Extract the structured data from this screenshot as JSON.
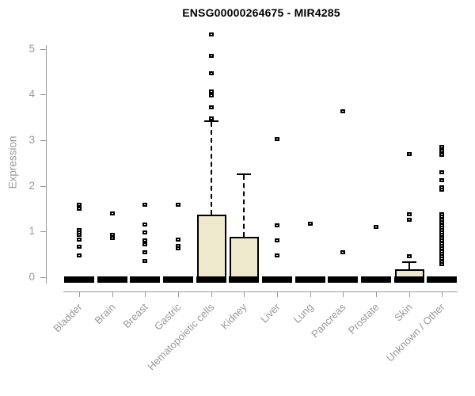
{
  "chart_data": {
    "type": "boxplot",
    "title": "ENSG00000264675 - MIR4285",
    "ylabel": "Expression",
    "xlabel": "",
    "ylim": [
      0,
      5.4
    ],
    "yticks": [
      0,
      1,
      2,
      3,
      4,
      5
    ],
    "grid": false,
    "legend": "none",
    "colors": {
      "box_fill": "#EEE8CD",
      "box_border": "#000000",
      "median": "#000000",
      "outlier_border": "#000000",
      "outlier_fill": "#FFFFFF",
      "axis": "#999999",
      "title": "#000000"
    },
    "categories": [
      {
        "label": "Bladder",
        "median": 0,
        "q1": 0,
        "q3": 0,
        "whisker_high": 0,
        "outliers": [
          1.59,
          1.51,
          1.04,
          0.99,
          0.94,
          0.84,
          0.68,
          0.49
        ]
      },
      {
        "label": "Brain",
        "median": 0,
        "q1": 0,
        "q3": 0,
        "whisker_high": 0,
        "outliers": [
          1.4,
          0.93,
          0.87
        ]
      },
      {
        "label": "Breast",
        "median": 0,
        "q1": 0,
        "q3": 0,
        "whisker_high": 0,
        "outliers": [
          1.59,
          1.16,
          0.98,
          0.82,
          0.76,
          0.72,
          0.55,
          0.37
        ]
      },
      {
        "label": "Gastric",
        "median": 0,
        "q1": 0,
        "q3": 0,
        "whisker_high": 0,
        "outliers": [
          1.59,
          0.84,
          0.7,
          0.64
        ]
      },
      {
        "label": "Hematopoietic cells",
        "median": 0,
        "q1": 0,
        "q3": 1.37,
        "whisker_high": 3.43,
        "outliers": [
          5.33,
          4.85,
          4.47,
          4.08,
          3.98,
          3.73,
          3.49
        ]
      },
      {
        "label": "Kidney",
        "median": 0,
        "q1": 0,
        "q3": 0.88,
        "whisker_high": 2.27,
        "outliers": []
      },
      {
        "label": "Liver",
        "median": 0,
        "q1": 0,
        "q3": 0,
        "whisker_high": 0,
        "outliers": [
          3.03,
          1.14,
          0.82,
          0.49
        ]
      },
      {
        "label": "Lung",
        "median": 0,
        "q1": 0,
        "q3": 0,
        "whisker_high": 0,
        "outliers": [
          1.18
        ]
      },
      {
        "label": "Pancreas",
        "median": 0,
        "q1": 0,
        "q3": 0,
        "whisker_high": 0,
        "outliers": [
          3.65,
          0.55
        ]
      },
      {
        "label": "Prostate",
        "median": 0,
        "q1": 0,
        "q3": 0,
        "whisker_high": 0,
        "outliers": [
          1.11
        ]
      },
      {
        "label": "Skin",
        "median": 0,
        "q1": 0,
        "q3": 0.18,
        "whisker_high": 0.35,
        "outliers": [
          2.7,
          1.39,
          1.27,
          0.46
        ]
      },
      {
        "label": "Unknown / Other",
        "median": 0,
        "q1": 0,
        "q3": 0,
        "whisker_high": 0,
        "outliers": [
          2.86,
          2.77,
          2.69,
          2.31,
          2.14,
          1.98,
          1.93,
          1.39,
          1.33,
          1.27,
          1.21,
          1.15,
          1.09,
          1.04,
          0.98,
          0.93,
          0.87,
          0.81,
          0.75,
          0.7,
          0.64,
          0.58,
          0.52,
          0.47,
          0.41,
          0.35,
          0.29
        ]
      }
    ]
  }
}
